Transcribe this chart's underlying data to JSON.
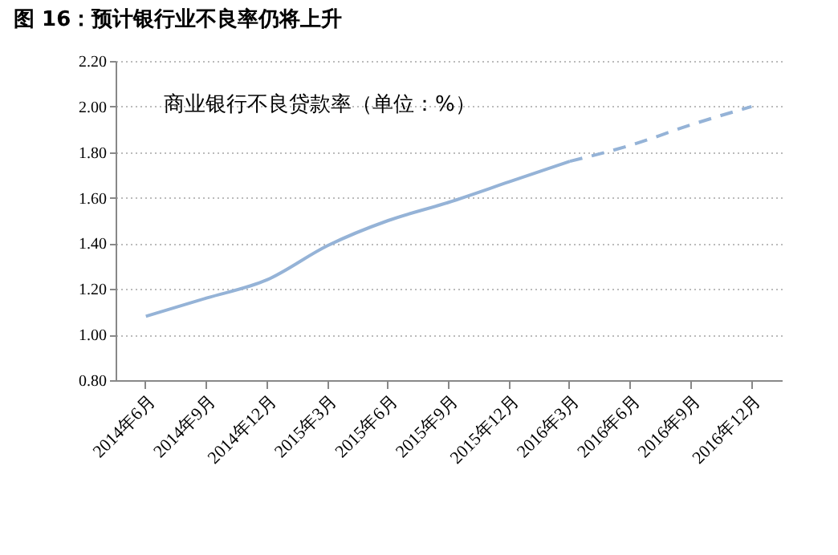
{
  "chart_data": {
    "type": "line",
    "title": "图 16：预计银行业不良率仍将上升",
    "categories": [
      "2014年6月",
      "2014年9月",
      "2014年12月",
      "2015年3月",
      "2015年6月",
      "2015年9月",
      "2015年12月",
      "2016年3月",
      "2016年6月",
      "2016年9月",
      "2016年12月"
    ],
    "series": [
      {
        "color": "#95b3d7",
        "line_style": "solid",
        "values": [
          1.08,
          1.16,
          1.24,
          1.39,
          1.5,
          1.58,
          1.67,
          1.76,
          null,
          null,
          null
        ]
      },
      {
        "color": "#95b3d7",
        "line_style": "dashed",
        "values": [
          null,
          null,
          null,
          null,
          null,
          null,
          null,
          1.76,
          1.83,
          1.92,
          2.0
        ]
      }
    ],
    "ylim": [
      0.8,
      2.2
    ],
    "yticks": [
      {
        "value": 0.8,
        "label": "0.80"
      },
      {
        "value": 1.0,
        "label": "1.00"
      },
      {
        "value": 1.2,
        "label": "1.20"
      },
      {
        "value": 1.4,
        "label": "1.40"
      },
      {
        "value": 1.6,
        "label": "1.60"
      },
      {
        "value": 1.8,
        "label": "1.80"
      },
      {
        "value": 2.0,
        "label": "2.00"
      },
      {
        "value": 2.2,
        "label": "2.20"
      }
    ],
    "grid": "y",
    "marker": "none",
    "annotations": [
      "商业银行不良贷款率（单位：%）"
    ]
  }
}
